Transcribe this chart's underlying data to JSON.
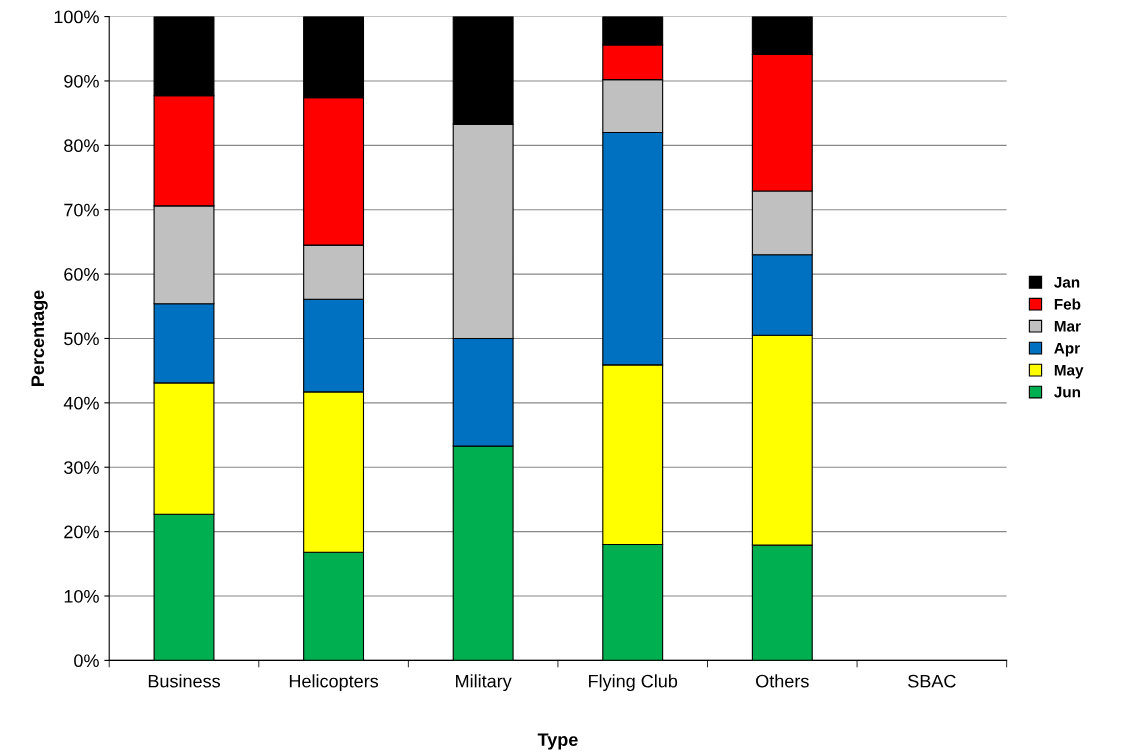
{
  "chart_data": {
    "type": "bar",
    "stacked": true,
    "xlabel": "Type",
    "ylabel": "Percentage",
    "categories": [
      "Business",
      "Helicopters",
      "Military",
      "Flying Club",
      "Others",
      "SBAC"
    ],
    "series": [
      {
        "name": "Jun",
        "color": "#00b050",
        "values": [
          22.7,
          16.8,
          33.3,
          18.0,
          17.9,
          null
        ]
      },
      {
        "name": "May",
        "color": "#ffff00",
        "values": [
          20.4,
          24.9,
          0,
          27.9,
          32.6,
          null
        ]
      },
      {
        "name": "Apr",
        "color": "#0070c0",
        "values": [
          12.3,
          14.4,
          16.7,
          36.1,
          12.5,
          null
        ]
      },
      {
        "name": "Mar",
        "color": "#c0c0c0",
        "values": [
          15.2,
          8.4,
          33.3,
          8.2,
          9.9,
          null
        ]
      },
      {
        "name": "Feb",
        "color": "#ff0000",
        "values": [
          17.1,
          22.9,
          0,
          5.4,
          21.2,
          null
        ]
      },
      {
        "name": "Jan",
        "color": "#000000",
        "values": [
          12.3,
          12.6,
          16.7,
          4.4,
          5.9,
          null
        ]
      }
    ],
    "ylim": [
      0,
      100
    ],
    "yticks": [
      {
        "value": 0,
        "label": "0%"
      },
      {
        "value": 10,
        "label": "10%"
      },
      {
        "value": 20,
        "label": "20%"
      },
      {
        "value": 30,
        "label": "30%"
      },
      {
        "value": 40,
        "label": "40%"
      },
      {
        "value": 50,
        "label": "50%"
      },
      {
        "value": 60,
        "label": "60%"
      },
      {
        "value": 70,
        "label": "70%"
      },
      {
        "value": 80,
        "label": "80%"
      },
      {
        "value": 90,
        "label": "90%"
      },
      {
        "value": 100,
        "label": "100%"
      }
    ],
    "grid": "y",
    "legend": "right"
  }
}
